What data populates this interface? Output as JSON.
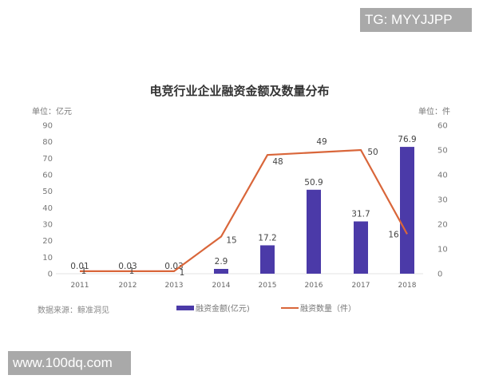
{
  "watermarks": {
    "top_right": "TG: MYYJJPP",
    "bottom_left": "www.100dq.com"
  },
  "chart": {
    "title": "电竞行业企业融资金额及数量分布",
    "unit_left": "单位：亿元",
    "unit_right": "单位：件",
    "source": "数据来源：鲸准洞见",
    "legend": {
      "bar": "融资金额(亿元)",
      "line": "融资数量（件）"
    },
    "colors": {
      "bar": "#4b3aa8",
      "line": "#d9663a"
    }
  },
  "chart_data": {
    "type": "bar",
    "title": "电竞行业企业融资金额及数量分布",
    "categories": [
      "2011",
      "2012",
      "2013",
      "2014",
      "2015",
      "2016",
      "2017",
      "2018"
    ],
    "series": [
      {
        "name": "融资金额(亿元)",
        "type": "bar",
        "axis": "left",
        "values": [
          0.01,
          0.03,
          0.03,
          2.9,
          17.2,
          50.9,
          31.7,
          76.9
        ],
        "labels": [
          "0.01",
          "0.03",
          "0.03",
          "2.9",
          "17.2",
          "50.9",
          "31.7",
          "76.9"
        ]
      },
      {
        "name": "融资数量（件）",
        "type": "line",
        "axis": "right",
        "values": [
          1,
          1,
          1,
          15,
          48,
          49,
          50,
          16
        ],
        "labels": [
          "1",
          "1",
          "1",
          "15",
          "48",
          "49",
          "50",
          "16"
        ]
      }
    ],
    "xlabel": "",
    "ylabel_left": "单位：亿元",
    "ylabel_right": "单位：件",
    "ylim_left": [
      0,
      90
    ],
    "yticks_left": [
      0,
      10,
      20,
      30,
      40,
      50,
      60,
      70,
      80,
      90
    ],
    "ylim_right": [
      0,
      60
    ],
    "yticks_right": [
      0,
      10,
      20,
      30,
      40,
      50,
      60
    ],
    "grid": false,
    "legend_position": "bottom",
    "source": "数据来源：鲸准洞见"
  }
}
